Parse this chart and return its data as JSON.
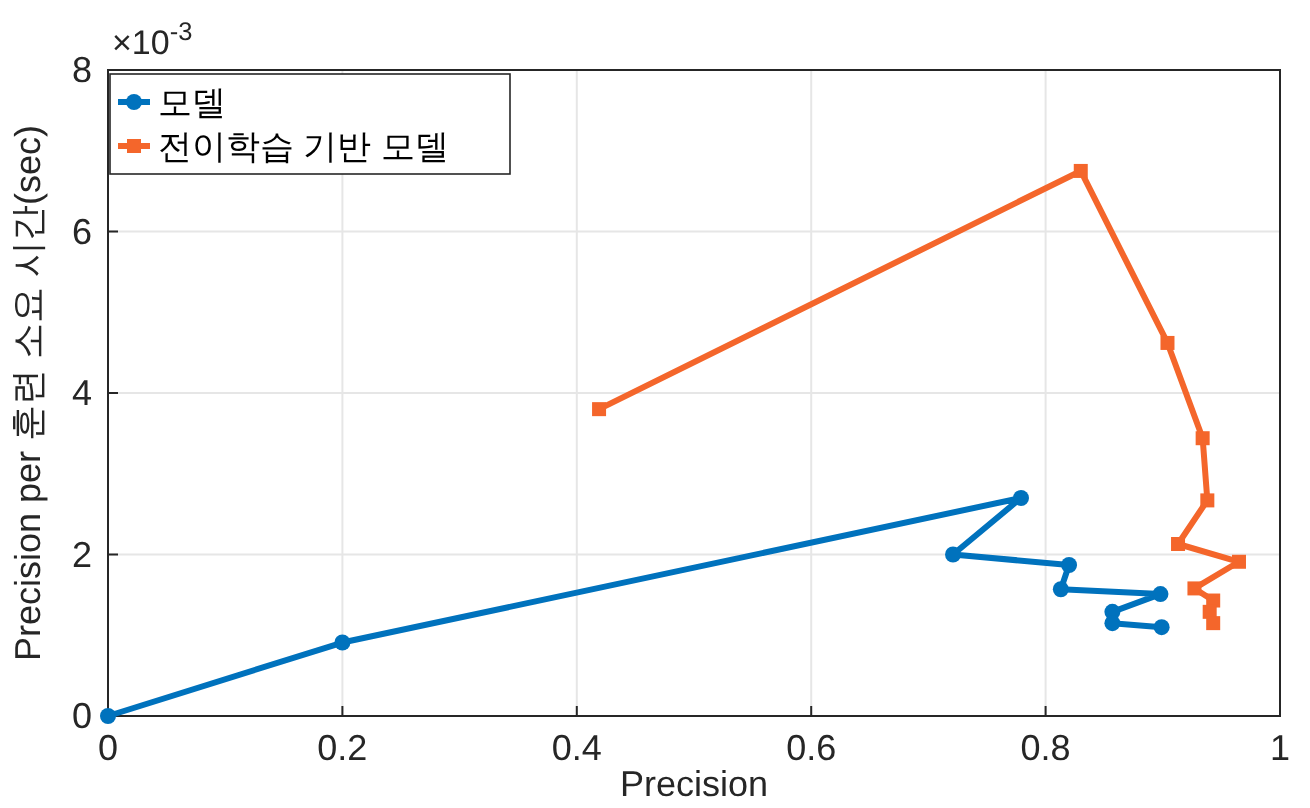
{
  "chart_data": {
    "type": "line",
    "xlabel": "Precision",
    "ylabel": "Precision per 훈련 소요 시간(sec)",
    "annotations": [
      "×10$^{-3}$"
    ],
    "xlim": [
      0,
      1
    ],
    "xticks": [
      0,
      0.2,
      0.4,
      0.6,
      0.8,
      1
    ],
    "ylim": [
      0,
      8
    ],
    "yticks": [
      0,
      2,
      4,
      6,
      8
    ],
    "grid": true,
    "legend": "top left",
    "series": [
      {
        "name": "모델",
        "color": "#0072bd",
        "marker": "circle",
        "x": [
          0,
          0.2,
          0.779,
          0.721,
          0.82,
          0.813,
          0.898,
          0.857,
          0.857,
          0.899
        ],
        "values": [
          0,
          0.91,
          2.7,
          2.0,
          1.87,
          1.57,
          1.51,
          1.29,
          1.15,
          1.1
        ]
      },
      {
        "name": "전이학습 기반 모델",
        "color": "#f4662b",
        "marker": "square",
        "x": [
          0.419,
          0.83,
          0.904,
          0.934,
          0.938,
          0.913,
          0.965,
          0.927,
          0.943,
          0.94,
          0.943
        ],
        "values": [
          3.8,
          6.75,
          4.62,
          3.44,
          2.67,
          2.13,
          1.91,
          1.58,
          1.43,
          1.29,
          1.15
        ]
      }
    ]
  }
}
